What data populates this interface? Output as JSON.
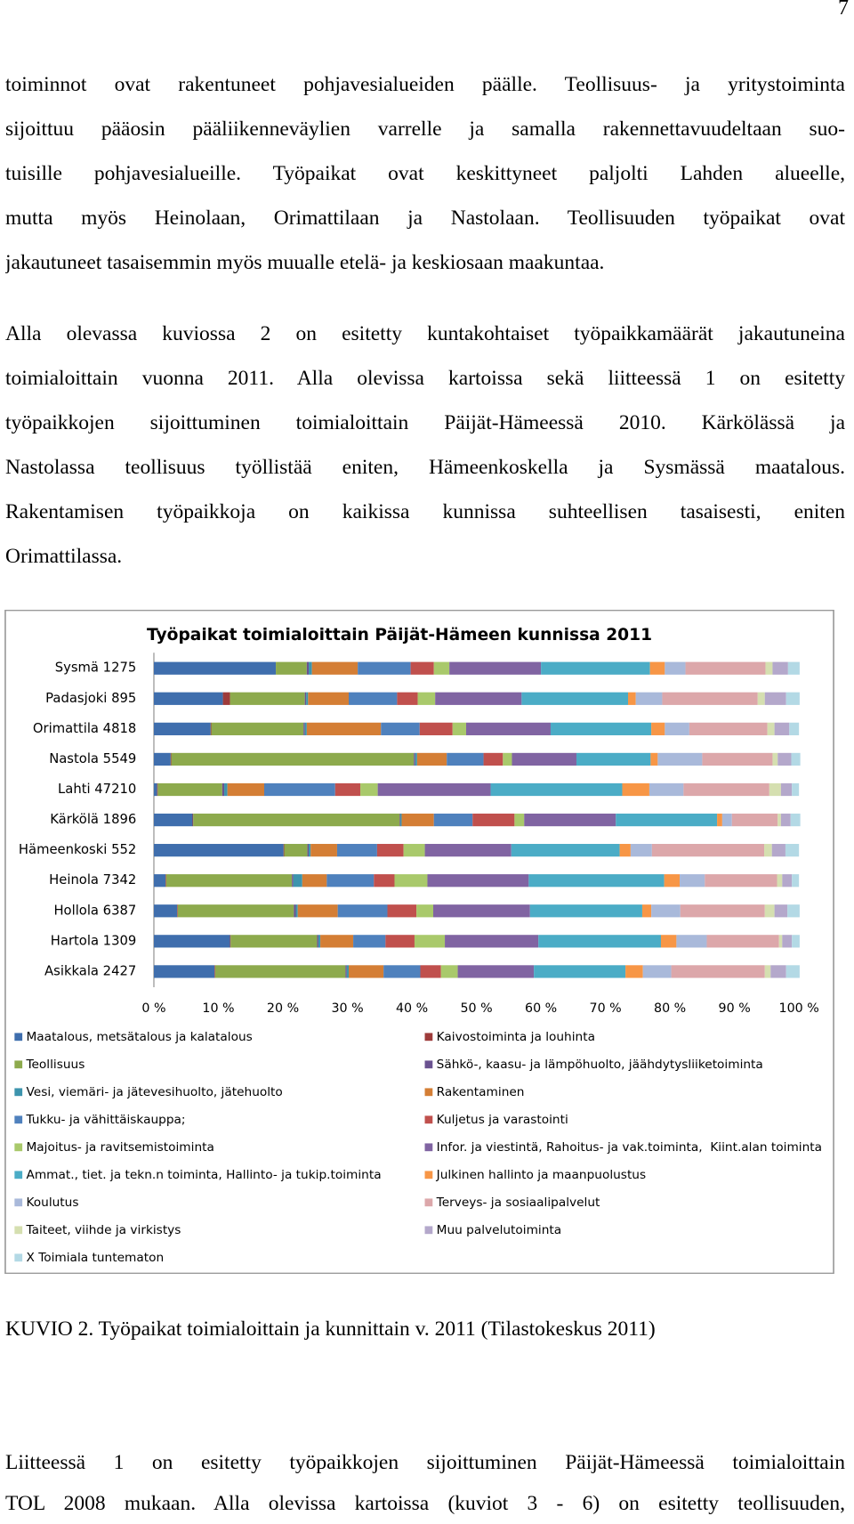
{
  "page_number": "7",
  "paragraphs": [
    [
      "toiminnot ovat rakentuneet pohjavesialueiden päälle. Teollisuus- ja yritystoiminta",
      "sijoittuu pääosin pääliikenneväylien varrelle ja samalla rakennettavuudeltaan suo-",
      "tuisille pohjavesialueille. Työpaikat ovat keskittyneet paljolti Lahden alueelle,",
      "mutta myös Heinolaan, Orimattilaan ja Nastolaan. Teollisuuden työpaikat ovat",
      "jakautuneet tasaisemmin myös muualle etelä- ja keskiosaan maakuntaa."
    ],
    [
      "Alla olevassa kuviossa 2 on esitetty kuntakohtaiset työpaikkamäärät jakautuneina",
      "toimialoittain vuonna 2011. Alla olevissa kartoissa sekä liitteessä 1 on esitetty",
      "työpaikkojen sijoittuminen toimialoittain Päijät-Hämeessä 2010. Kärkölässä ja",
      "Nastolassa teollisuus työllistää eniten, Hämeenkoskella ja Sysmässä maatalous.",
      "Rakentamisen työpaikkoja on kaikissa kunnissa suhteellisen tasaisesti, eniten",
      "Orimattilassa."
    ],
    [
      "Liitteessä 1 on esitetty työpaikkojen sijoittuminen Päijät-Hämeessä toimialoittain",
      "TOL 2008 mukaan. Alla olevissa kartoissa (kuviot 3 - 6) on esitetty teollisuuden,"
    ]
  ],
  "caption": "KUVIO 2. Työpaikat toimialoittain ja kunnittain v. 2011 (Tilastokeskus 2011)",
  "chart_data": {
    "type": "bar",
    "orientation": "horizontal",
    "stacked": true,
    "title": "Työpaikat toimialoittain Päijät-Hämeen kunnissa 2011",
    "categories": [
      "Sysmä 1275",
      "Padasjoki 895",
      "Orimattila 4818",
      "Nastola 5549",
      "Lahti 47210",
      "Kärkölä 1896",
      "Hämeenkoski 552",
      "Heinola 7342",
      "Hollola 6387",
      "Hartola 1309",
      "Asikkala 2427"
    ],
    "xlim": [
      0,
      100
    ],
    "xticks": [
      {
        "value": 0,
        "label": "0 %"
      },
      {
        "value": 10,
        "label": "10 %"
      },
      {
        "value": 20,
        "label": "20 %"
      },
      {
        "value": 30,
        "label": "30 %"
      },
      {
        "value": 40,
        "label": "40 %"
      },
      {
        "value": 50,
        "label": "50 %"
      },
      {
        "value": 60,
        "label": "60 %"
      },
      {
        "value": 70,
        "label": "70 %"
      },
      {
        "value": 80,
        "label": "80 %"
      },
      {
        "value": 90,
        "label": "90 %"
      },
      {
        "value": 100,
        "label": "100 %"
      }
    ],
    "grid": false,
    "series": [
      {
        "name": "Maatalous, metsätalous ja kalatalous",
        "color": "#3F6EAD",
        "values": [
          18.9,
          10.7,
          8.8,
          2.6,
          0.5,
          6.0,
          20.1,
          1.8,
          3.6,
          11.8,
          9.4
        ]
      },
      {
        "name": "Kaivostoiminta ja louhinta",
        "color": "#9E3B3A",
        "values": [
          0,
          1.1,
          0.1,
          0.1,
          0.1,
          0.1,
          0.1,
          0.1,
          0.1,
          0.1,
          0.1
        ]
      },
      {
        "name": "Teollisuus",
        "color": "#8DAA4D",
        "values": [
          4.8,
          11.6,
          14.3,
          37.6,
          10.0,
          32.0,
          3.6,
          19.5,
          18.0,
          13.4,
          20.2
        ]
      },
      {
        "name": "Sähkö-, kaasu- ja lämpöhuolto, jäähdytysliiketoiminta",
        "color": "#6A5290",
        "values": [
          0.3,
          0.2,
          0.2,
          0.2,
          0.3,
          0.1,
          0.2,
          0.2,
          0.3,
          0.2,
          0.2
        ]
      },
      {
        "name": "Vesi, viemäri- ja jätevesihuolto, jätehuolto",
        "color": "#3D94AD",
        "values": [
          0.5,
          0.3,
          0.3,
          0.3,
          0.5,
          0.2,
          0.3,
          1.4,
          0.3,
          0.3,
          0.3
        ]
      },
      {
        "name": "Rakentaminen",
        "color": "#D47E35",
        "values": [
          7.1,
          6.3,
          11.5,
          4.6,
          5.7,
          5.0,
          4.1,
          3.8,
          6.2,
          5.1,
          5.4
        ]
      },
      {
        "name": "Tukku- ja vähittäiskauppa;",
        "color": "#4F81BD",
        "values": [
          8.2,
          7.5,
          6.0,
          5.7,
          11.0,
          6.0,
          6.2,
          7.3,
          7.7,
          5.0,
          5.7
        ]
      },
      {
        "name": "Kuljetus ja varastointi",
        "color": "#C0504D",
        "values": [
          3.6,
          3.2,
          5.1,
          3.0,
          3.9,
          6.5,
          4.1,
          3.2,
          4.5,
          4.5,
          3.2
        ]
      },
      {
        "name": "Majoitus- ja ravitsemistoiminta",
        "color": "#A9C96B",
        "values": [
          2.4,
          2.7,
          2.1,
          1.4,
          2.7,
          1.5,
          3.3,
          5.1,
          2.6,
          4.7,
          2.6
        ]
      },
      {
        "name": "Infor. ja viestintä, Rahoitus- ja vak.toiminta,  Kiint.alan toiminta",
        "color": "#8064A2",
        "values": [
          14.2,
          13.4,
          13.1,
          10.0,
          17.5,
          14.2,
          13.4,
          15.7,
          15.0,
          14.5,
          11.8
        ]
      },
      {
        "name": "Ammat., tiet. ja tekn.n toiminta, Hallinto- ja tukip.toiminta",
        "color": "#4BACC6",
        "values": [
          16.9,
          16.5,
          15.6,
          11.5,
          20.4,
          15.7,
          16.8,
          21.0,
          17.4,
          19.0,
          14.2
        ]
      },
      {
        "name": "Julkinen hallinto ja maanpuolustus",
        "color": "#F79646",
        "values": [
          2.3,
          1.2,
          2.1,
          1.1,
          4.2,
          0.8,
          1.7,
          2.4,
          1.4,
          2.4,
          2.7
        ]
      },
      {
        "name": "Koulutus",
        "color": "#A9B9DA",
        "values": [
          3.2,
          4.1,
          3.8,
          6.9,
          5.3,
          1.5,
          3.3,
          3.9,
          4.5,
          4.7,
          4.4
        ]
      },
      {
        "name": "Terveys- ja sosiaalipalvelut",
        "color": "#DCA7AA",
        "values": [
          12.4,
          14.8,
          12.1,
          10.9,
          13.3,
          7.1,
          17.4,
          11.2,
          13.1,
          11.2,
          14.5
        ]
      },
      {
        "name": "Taiteet, viihde ja virkistys",
        "color": "#D5DFB0",
        "values": [
          1.1,
          1.1,
          1.1,
          0.8,
          1.8,
          0.5,
          1.2,
          0.8,
          1.5,
          0.5,
          0.9
        ]
      },
      {
        "name": "Muu palvelutoiminta",
        "color": "#B4A8CB",
        "values": [
          2.4,
          3.3,
          2.3,
          2.1,
          1.7,
          1.5,
          2.1,
          1.5,
          2.0,
          1.5,
          2.4
        ]
      },
      {
        "name": "X Toimiala tuntematon",
        "color": "#B3D9E5",
        "values": [
          1.8,
          2.1,
          1.5,
          1.4,
          1.1,
          1.5,
          2.1,
          1.1,
          1.9,
          1.2,
          2.1
        ]
      }
    ]
  }
}
